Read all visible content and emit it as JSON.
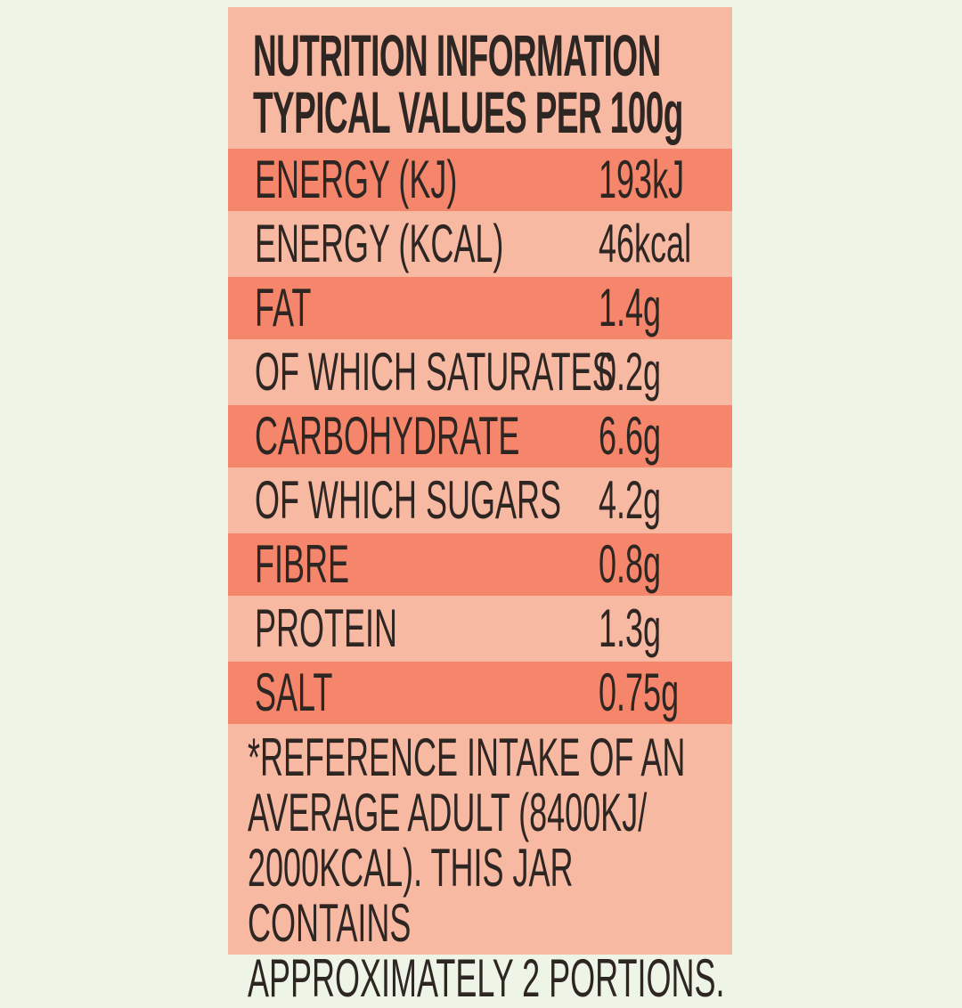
{
  "title_line1": "NUTRITION INFORMATION",
  "title_line2": "TYPICAL VALUES PER 100g",
  "rows": [
    {
      "label": "ENERGY (KJ)",
      "value": "193kJ"
    },
    {
      "label": "ENERGY (KCAL)",
      "value": "46kcal"
    },
    {
      "label": "FAT",
      "value": "1.4g"
    },
    {
      "label": "OF WHICH SATURATES",
      "value": "0.2g"
    },
    {
      "label": "CARBOHYDRATE",
      "value": "6.6g"
    },
    {
      "label": "OF WHICH SUGARS",
      "value": "4.2g"
    },
    {
      "label": "FIBRE",
      "value": "0.8g"
    },
    {
      "label": "PROTEIN",
      "value": "1.3g"
    },
    {
      "label": "SALT",
      "value": "0.75g"
    }
  ],
  "footnote": "*REFERENCE INTAKE OF AN\nAVERAGE ADULT (8400KJ/\n2000KCAL). THIS JAR CONTAINS\nAPPROXIMATELY 2 PORTIONS.",
  "colors": {
    "background": "#eef5e6",
    "panel": "#f8b9a3",
    "stripe": "#f5866b",
    "text": "#2e2623"
  }
}
